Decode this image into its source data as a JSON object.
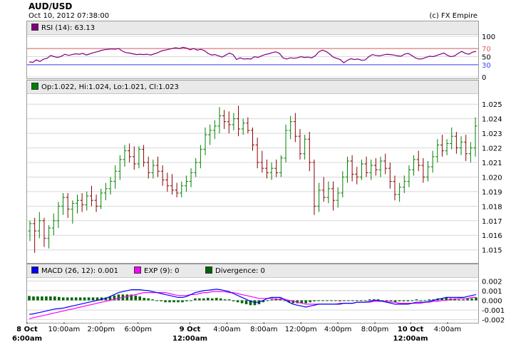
{
  "header": {
    "title": "AUD/USD",
    "timestamp": "Oct 10, 2012 07:38:00",
    "copyright": "(c) FX Empire"
  },
  "colors": {
    "bull": "#008000",
    "bear": "#8b0000",
    "rsi_line": "#800080",
    "rsi_upper": "#e06060",
    "rsi_lower": "#4040ff",
    "macd_line": "#0000ff",
    "exp_line": "#ff00ff",
    "divergence": "#006400",
    "grid": "#d8d8d8"
  },
  "chart_data": [
    {
      "type": "line",
      "name": "rsi",
      "legend": "RSI (14): 63.13",
      "ylim": [
        0,
        100
      ],
      "yticks": [
        0,
        30,
        50,
        70,
        100
      ],
      "levels": [
        {
          "value": 70,
          "label": "70"
        },
        {
          "value": 30,
          "label": "30"
        }
      ],
      "values": [
        37,
        36,
        42,
        38,
        44,
        46,
        53,
        50,
        48,
        51,
        56,
        53,
        55,
        57,
        56,
        58,
        54,
        57,
        60,
        62,
        65,
        67,
        68,
        69,
        68,
        70,
        64,
        60,
        59,
        57,
        55,
        56,
        55,
        56,
        54,
        57,
        60,
        64,
        66,
        68,
        70,
        72,
        70,
        73,
        71,
        67,
        70,
        66,
        68,
        65,
        58,
        54,
        55,
        52,
        49,
        54,
        59,
        55,
        43,
        47,
        44,
        45,
        44,
        50,
        48,
        52,
        55,
        57,
        60,
        62,
        58,
        47,
        44,
        47,
        46,
        47,
        50,
        48,
        49,
        47,
        52,
        62,
        66,
        63,
        57,
        49,
        46,
        43,
        35,
        41,
        45,
        43,
        44,
        41,
        42,
        50,
        55,
        53,
        52,
        54,
        56,
        55,
        54,
        52,
        51,
        56,
        58,
        53,
        47,
        44,
        45,
        48,
        51,
        50,
        53,
        56,
        59,
        53,
        50,
        52,
        58,
        63,
        58,
        56,
        61,
        63.13
      ]
    },
    {
      "type": "ohlc",
      "name": "price",
      "legend": "Op:1.022, Hi:1.024, Lo:1.021, Cl:1.023",
      "ylim": [
        1.0143,
        1.0255
      ],
      "yticks": [
        1.015,
        1.016,
        1.017,
        1.018,
        1.019,
        1.02,
        1.021,
        1.022,
        1.023,
        1.024,
        1.025
      ],
      "ytick_labels": [
        "1.015",
        "1.016",
        "1.017",
        "1.018",
        "1.019",
        "1.020",
        "1.021",
        "1.022",
        "1.023",
        "1.024",
        "1.025"
      ],
      "bars": [
        [
          1.0163,
          1.017,
          1.0156,
          1.0168
        ],
        [
          1.0168,
          1.0172,
          1.0148,
          1.0163
        ],
        [
          1.0163,
          1.0176,
          1.0158,
          1.017
        ],
        [
          1.017,
          1.0172,
          1.0152,
          1.0158
        ],
        [
          1.0158,
          1.0167,
          1.0151,
          1.0165
        ],
        [
          1.0165,
          1.0175,
          1.016,
          1.017
        ],
        [
          1.017,
          1.0183,
          1.0165,
          1.018
        ],
        [
          1.018,
          1.0189,
          1.0174,
          1.0186
        ],
        [
          1.0186,
          1.0189,
          1.0172,
          1.0178
        ],
        [
          1.0178,
          1.0184,
          1.0168,
          1.0182
        ],
        [
          1.0182,
          1.0188,
          1.0175,
          1.0184
        ],
        [
          1.0184,
          1.0189,
          1.0176,
          1.0181
        ],
        [
          1.0181,
          1.019,
          1.0177,
          1.0187
        ],
        [
          1.0187,
          1.0194,
          1.018,
          1.0184
        ],
        [
          1.0184,
          1.0188,
          1.0176,
          1.018
        ],
        [
          1.018,
          1.0192,
          1.0178,
          1.0189
        ],
        [
          1.0189,
          1.0196,
          1.0184,
          1.0192
        ],
        [
          1.0192,
          1.02,
          1.0188,
          1.0197
        ],
        [
          1.0197,
          1.0208,
          1.0192,
          1.0204
        ],
        [
          1.0204,
          1.0215,
          1.0198,
          1.0212
        ],
        [
          1.0212,
          1.0222,
          1.0207,
          1.0218
        ],
        [
          1.0218,
          1.0223,
          1.021,
          1.0214
        ],
        [
          1.0214,
          1.0221,
          1.0205,
          1.0209
        ],
        [
          1.0209,
          1.0221,
          1.0206,
          1.0219
        ],
        [
          1.0219,
          1.0222,
          1.0207,
          1.021
        ],
        [
          1.021,
          1.0214,
          1.0199,
          1.0203
        ],
        [
          1.0203,
          1.0212,
          1.0199,
          1.0208
        ],
        [
          1.0208,
          1.0214,
          1.02,
          1.0204
        ],
        [
          1.0204,
          1.0208,
          1.0194,
          1.0198
        ],
        [
          1.0198,
          1.0203,
          1.019,
          1.0194
        ],
        [
          1.0194,
          1.0202,
          1.0188,
          1.0191
        ],
        [
          1.0191,
          1.0196,
          1.0186,
          1.0189
        ],
        [
          1.0189,
          1.0197,
          1.0186,
          1.0194
        ],
        [
          1.0194,
          1.0201,
          1.019,
          1.0197
        ],
        [
          1.0197,
          1.0206,
          1.0193,
          1.0203
        ],
        [
          1.0203,
          1.0213,
          1.02,
          1.021
        ],
        [
          1.021,
          1.0222,
          1.0206,
          1.0219
        ],
        [
          1.0219,
          1.0234,
          1.0215,
          1.0229
        ],
        [
          1.0229,
          1.0236,
          1.0222,
          1.0232
        ],
        [
          1.0232,
          1.0239,
          1.0226,
          1.0235
        ],
        [
          1.0235,
          1.0248,
          1.023,
          1.0242
        ],
        [
          1.0242,
          1.0246,
          1.0233,
          1.0238
        ],
        [
          1.0238,
          1.0245,
          1.023,
          1.0236
        ],
        [
          1.0236,
          1.0244,
          1.0232,
          1.024
        ],
        [
          1.024,
          1.0249,
          1.0228,
          1.0233
        ],
        [
          1.0233,
          1.024,
          1.0229,
          1.0237
        ],
        [
          1.0237,
          1.0241,
          1.023,
          1.0232
        ],
        [
          1.0232,
          1.0234,
          1.0218,
          1.0222
        ],
        [
          1.0222,
          1.0227,
          1.0206,
          1.021
        ],
        [
          1.021,
          1.0218,
          1.0203,
          1.0206
        ],
        [
          1.0206,
          1.0212,
          1.0199,
          1.0203
        ],
        [
          1.0203,
          1.021,
          1.0198,
          1.0206
        ],
        [
          1.0206,
          1.0212,
          1.02,
          1.0203
        ],
        [
          1.0203,
          1.0215,
          1.02,
          1.0213
        ],
        [
          1.0213,
          1.0236,
          1.021,
          1.0232
        ],
        [
          1.0232,
          1.0242,
          1.0226,
          1.0238
        ],
        [
          1.0238,
          1.0244,
          1.0224,
          1.0228
        ],
        [
          1.0228,
          1.0233,
          1.0212,
          1.0216
        ],
        [
          1.0216,
          1.0229,
          1.0212,
          1.0226
        ],
        [
          1.0226,
          1.0231,
          1.0204,
          1.021
        ],
        [
          1.021,
          1.0212,
          1.0174,
          1.018
        ],
        [
          1.018,
          1.0196,
          1.0176,
          1.0191
        ],
        [
          1.0191,
          1.02,
          1.0183,
          1.0186
        ],
        [
          1.0186,
          1.0197,
          1.0182,
          1.0192
        ],
        [
          1.0192,
          1.0197,
          1.0177,
          1.0184
        ],
        [
          1.0184,
          1.0193,
          1.0179,
          1.0189
        ],
        [
          1.0189,
          1.0204,
          1.0186,
          1.02
        ],
        [
          1.02,
          1.0214,
          1.0196,
          1.0211
        ],
        [
          1.0211,
          1.0215,
          1.0197,
          1.0202
        ],
        [
          1.0202,
          1.0207,
          1.0195,
          1.02
        ],
        [
          1.02,
          1.0212,
          1.0198,
          1.0209
        ],
        [
          1.0209,
          1.0214,
          1.02,
          1.0203
        ],
        [
          1.0203,
          1.0212,
          1.0198,
          1.0208
        ],
        [
          1.0208,
          1.0213,
          1.0201,
          1.0205
        ],
        [
          1.0205,
          1.0214,
          1.02,
          1.0211
        ],
        [
          1.0211,
          1.0216,
          1.0202,
          1.0206
        ],
        [
          1.0206,
          1.021,
          1.0192,
          1.0197
        ],
        [
          1.0197,
          1.0201,
          1.0184,
          1.0188
        ],
        [
          1.0188,
          1.0196,
          1.0183,
          1.0193
        ],
        [
          1.0193,
          1.0201,
          1.0189,
          1.0197
        ],
        [
          1.0197,
          1.0208,
          1.0193,
          1.0205
        ],
        [
          1.0205,
          1.0215,
          1.0201,
          1.0212
        ],
        [
          1.0212,
          1.0218,
          1.0204,
          1.0208
        ],
        [
          1.0208,
          1.0213,
          1.0196,
          1.02
        ],
        [
          1.02,
          1.0211,
          1.0197,
          1.0207
        ],
        [
          1.0207,
          1.0218,
          1.0203,
          1.0214
        ],
        [
          1.0214,
          1.0226,
          1.021,
          1.0222
        ],
        [
          1.0222,
          1.0229,
          1.0214,
          1.0218
        ],
        [
          1.0218,
          1.0226,
          1.0215,
          1.0223
        ],
        [
          1.0223,
          1.0234,
          1.0219,
          1.0228
        ],
        [
          1.0228,
          1.0231,
          1.0216,
          1.022
        ],
        [
          1.022,
          1.0228,
          1.0215,
          1.0224
        ],
        [
          1.0224,
          1.0229,
          1.0211,
          1.0216
        ],
        [
          1.0216,
          1.0224,
          1.021,
          1.022
        ],
        [
          1.022,
          1.0241,
          1.0214,
          1.0235
        ]
      ]
    },
    {
      "type": "line",
      "name": "macd",
      "legend_macd": "MACD (26, 12): 0.001",
      "legend_exp": "EXP (9): 0",
      "legend_div": "Divergence: 0",
      "ylim": [
        -0.0021,
        0.0021
      ],
      "yticks": [
        -0.002,
        -0.001,
        0,
        0.001,
        0.002
      ],
      "ytick_labels": [
        "-0.002",
        "-0.001",
        "0.000",
        "0.001",
        "0.002"
      ],
      "x_ticks": [
        {
          "pos": 0.0,
          "label": "8 Oct",
          "sub": "6:00am",
          "bold": true
        },
        {
          "pos": 0.082,
          "label": "10:00am",
          "bold": false
        },
        {
          "pos": 0.164,
          "label": "2:00pm",
          "bold": false
        },
        {
          "pos": 0.246,
          "label": "6:00pm",
          "bold": false
        },
        {
          "pos": 0.361,
          "label": "9 Oct",
          "sub": "12:00am",
          "bold": true
        },
        {
          "pos": 0.443,
          "label": "4:00am",
          "bold": false
        },
        {
          "pos": 0.525,
          "label": "8:00am",
          "bold": false
        },
        {
          "pos": 0.607,
          "label": "12:00pm",
          "bold": false
        },
        {
          "pos": 0.689,
          "label": "4:00pm",
          "bold": false
        },
        {
          "pos": 0.771,
          "label": "8:00pm",
          "bold": false
        },
        {
          "pos": 0.85,
          "label": "10 Oct",
          "sub": "12:00am",
          "bold": true
        },
        {
          "pos": 0.932,
          "label": "4:00am",
          "bold": false
        }
      ],
      "macd": [
        -0.00145,
        -0.0014,
        -0.0013,
        -0.0012,
        -0.0011,
        -0.001,
        -0.0009,
        -0.00085,
        -0.0008,
        -0.0007,
        -0.0006,
        -0.0005,
        -0.0004,
        -0.0003,
        -0.0002,
        -0.0001,
        0,
        0.0001,
        0.0002,
        0.0004,
        0.0006,
        0.0008,
        0.0009,
        0.001,
        0.0011,
        0.0011,
        0.0011,
        0.00105,
        0.001,
        0.0009,
        0.0008,
        0.0007,
        0.0006,
        0.0005,
        0.0004,
        0.0003,
        0.0003,
        0.0004,
        0.0006,
        0.0008,
        0.0009,
        0.001,
        0.00105,
        0.0011,
        0.00115,
        0.0011,
        0.001,
        0.0009,
        0.0007,
        0.0005,
        0.0003,
        0.0001,
        -0.0001,
        -0.0002,
        -0.0002,
        0,
        0.0002,
        0.0003,
        0.0003,
        0.0003,
        0.0001,
        -0.0002,
        -0.0004,
        -0.0005,
        -0.0006,
        -0.0007,
        -0.0006,
        -0.0005,
        -0.0004,
        -0.0004,
        -0.0004,
        -0.0004,
        -0.0004,
        -0.0004,
        -0.0003,
        -0.0003,
        -0.0003,
        -0.0002,
        -0.0002,
        -0.0002,
        -0.0001,
        0,
        0,
        -0.0001,
        -0.0002,
        -0.0003,
        -0.0004,
        -0.0004,
        -0.0004,
        -0.0004,
        -0.0003,
        -0.0002,
        -0.0002,
        -0.0002,
        -0.0001,
        0,
        0.0001,
        0.0002,
        0.0003,
        0.0003,
        0.0003,
        0.0003,
        0.0003,
        0.0004,
        0.0005,
        0.0006
      ],
      "exp": [
        -0.0019,
        -0.0018,
        -0.0017,
        -0.0016,
        -0.0015,
        -0.0014,
        -0.0013,
        -0.0012,
        -0.0011,
        -0.001,
        -0.0009,
        -0.0008,
        -0.0007,
        -0.0006,
        -0.0005,
        -0.0004,
        -0.0003,
        -0.0002,
        -0.0001,
        0,
        0.0001,
        0.0002,
        0.0003,
        0.0004,
        0.0005,
        0.0006,
        0.0007,
        0.0008,
        0.0008,
        0.0008,
        0.0008,
        0.0008,
        0.0008,
        0.0007,
        0.0006,
        0.0005,
        0.0005,
        0.0005,
        0.0006,
        0.0006,
        0.0007,
        0.0008,
        0.0008,
        0.0009,
        0.0009,
        0.0009,
        0.0009,
        0.0008,
        0.0008,
        0.0007,
        0.0006,
        0.0005,
        0.0004,
        0.0003,
        0.0002,
        0.0002,
        0.0002,
        0.0002,
        0.0001,
        0.0001,
        0.0001,
        0,
        -0.0001,
        -0.0002,
        -0.0003,
        -0.0004,
        -0.0004,
        -0.0004,
        -0.0004,
        -0.0004,
        -0.0004,
        -0.0004,
        -0.0004,
        -0.0003,
        -0.0003,
        -0.0003,
        -0.0003,
        -0.0002,
        -0.0002,
        -0.0002,
        -0.0002,
        -0.0001,
        -0.0001,
        -0.0001,
        -0.0001,
        -0.0002,
        -0.0002,
        -0.0003,
        -0.0003,
        -0.0003,
        -0.0003,
        -0.0003,
        -0.0003,
        -0.0002,
        -0.0002,
        -0.0001,
        -0.0001,
        0,
        0,
        0.0001,
        0.0001,
        0.0002,
        0.0002,
        0.0002,
        0.0003,
        0.0003
      ],
      "divergence": [
        0.00045,
        0.0004,
        0.0004,
        0.0004,
        0.0004,
        0.0004,
        0.0004,
        0.00035,
        0.0003,
        0.0003,
        0.0003,
        0.0003,
        0.0003,
        0.0003,
        0.0003,
        0.0003,
        0.0003,
        0.0003,
        0.0003,
        0.0004,
        0.0005,
        0.0006,
        0.0006,
        0.0006,
        0.0006,
        0.0005,
        0.0004,
        0.00025,
        0.0002,
        0.0001,
        0,
        -0.0001,
        -0.0002,
        -0.0002,
        -0.0002,
        -0.0002,
        -0.0002,
        -0.0001,
        0,
        0.0002,
        0.0002,
        0.0002,
        0.00025,
        0.0002,
        0.00025,
        0.0002,
        0.0001,
        0.0001,
        -0.0001,
        -0.0002,
        -0.0003,
        -0.0004,
        -0.0005,
        -0.0005,
        -0.0004,
        -0.0002,
        0,
        0.0001,
        0.0002,
        0.0002,
        0,
        -0.0002,
        -0.0003,
        -0.0003,
        -0.0003,
        -0.0003,
        -0.0002,
        -0.0001,
        0,
        0,
        0,
        0,
        0,
        -0.0001,
        0,
        0,
        0,
        0,
        0,
        0,
        0.0001,
        0.0001,
        0.0001,
        0,
        0,
        -0.0001,
        -0.0002,
        -0.0001,
        -0.0001,
        -0.0001,
        0,
        0.0001,
        0,
        0,
        0.0001,
        0.0001,
        0.0002,
        0.0002,
        0.0003,
        0.0002,
        0.0002,
        0.0001,
        0.0001,
        0.0002,
        0.0002,
        0.0003
      ]
    }
  ]
}
